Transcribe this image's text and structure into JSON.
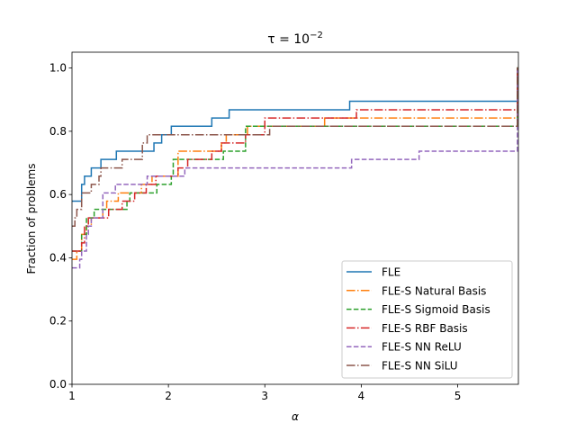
{
  "chart_data": {
    "type": "line",
    "subtype": "step",
    "title_base": "τ = 10",
    "title_exponent": "−2",
    "xlabel": "α",
    "ylabel": "Fraction of problems",
    "xlim": [
      1,
      5.63
    ],
    "ylim": [
      0,
      1.05
    ],
    "x_ticks": [
      1,
      2,
      3,
      4,
      5
    ],
    "y_ticks": [
      0.0,
      0.2,
      0.4,
      0.6,
      0.8,
      1.0
    ],
    "x_tick_labels": [
      "1",
      "2",
      "3",
      "4",
      "5"
    ],
    "y_tick_labels": [
      "0.0",
      "0.2",
      "0.4",
      "0.6",
      "0.8",
      "1.0"
    ],
    "legend_position": "lower-right",
    "series": [
      {
        "name": "FLE",
        "color": "#1f77b4",
        "dash": "solid",
        "points": [
          [
            1.0,
            0.579
          ],
          [
            1.1,
            0.632
          ],
          [
            1.13,
            0.658
          ],
          [
            1.2,
            0.684
          ],
          [
            1.3,
            0.711
          ],
          [
            1.46,
            0.737
          ],
          [
            1.85,
            0.763
          ],
          [
            1.93,
            0.789
          ],
          [
            2.03,
            0.816
          ],
          [
            2.45,
            0.842
          ],
          [
            2.63,
            0.868
          ],
          [
            3.88,
            0.895
          ],
          [
            5.62,
            1.0
          ]
        ]
      },
      {
        "name": "FLE-S Natural Basis",
        "color": "#ff7f0e",
        "dash": "dashdot",
        "points": [
          [
            1.0,
            0.395
          ],
          [
            1.05,
            0.421
          ],
          [
            1.1,
            0.474
          ],
          [
            1.15,
            0.5
          ],
          [
            1.2,
            0.526
          ],
          [
            1.32,
            0.553
          ],
          [
            1.36,
            0.579
          ],
          [
            1.48,
            0.605
          ],
          [
            1.72,
            0.632
          ],
          [
            1.83,
            0.658
          ],
          [
            2.1,
            0.737
          ],
          [
            2.55,
            0.763
          ],
          [
            2.6,
            0.789
          ],
          [
            2.82,
            0.816
          ],
          [
            3.62,
            0.842
          ],
          [
            4.35,
            0.842
          ],
          [
            5.62,
            1.0
          ]
        ]
      },
      {
        "name": "FLE-S Sigmoid Basis",
        "color": "#2ca02c",
        "dash": "dashed",
        "points": [
          [
            1.0,
            0.421
          ],
          [
            1.1,
            0.474
          ],
          [
            1.15,
            0.526
          ],
          [
            1.23,
            0.553
          ],
          [
            1.57,
            0.579
          ],
          [
            1.6,
            0.605
          ],
          [
            1.88,
            0.632
          ],
          [
            2.03,
            0.658
          ],
          [
            2.05,
            0.711
          ],
          [
            2.57,
            0.737
          ],
          [
            2.8,
            0.816
          ],
          [
            5.62,
            1.0
          ]
        ]
      },
      {
        "name": "FLE-S RBF Basis",
        "color": "#d62728",
        "dash": "dashdot",
        "points": [
          [
            1.0,
            0.421
          ],
          [
            1.1,
            0.447
          ],
          [
            1.13,
            0.5
          ],
          [
            1.17,
            0.526
          ],
          [
            1.3,
            0.526
          ],
          [
            1.38,
            0.553
          ],
          [
            1.52,
            0.579
          ],
          [
            1.65,
            0.605
          ],
          [
            1.77,
            0.632
          ],
          [
            1.87,
            0.658
          ],
          [
            2.1,
            0.684
          ],
          [
            2.2,
            0.711
          ],
          [
            2.45,
            0.737
          ],
          [
            2.55,
            0.763
          ],
          [
            2.8,
            0.789
          ],
          [
            3.0,
            0.842
          ],
          [
            3.95,
            0.868
          ],
          [
            5.62,
            1.0
          ]
        ]
      },
      {
        "name": "FLE-S NN ReLU",
        "color": "#9467bd",
        "dash": "dashed",
        "points": [
          [
            1.0,
            0.368
          ],
          [
            1.08,
            0.395
          ],
          [
            1.1,
            0.421
          ],
          [
            1.15,
            0.474
          ],
          [
            1.17,
            0.5
          ],
          [
            1.2,
            0.526
          ],
          [
            1.32,
            0.605
          ],
          [
            1.45,
            0.632
          ],
          [
            1.78,
            0.658
          ],
          [
            2.17,
            0.684
          ],
          [
            3.9,
            0.711
          ],
          [
            4.6,
            0.737
          ],
          [
            5.62,
            1.0
          ]
        ]
      },
      {
        "name": "FLE-S NN SiLU",
        "color": "#8c564b",
        "dash": "dashdot",
        "points": [
          [
            1.0,
            0.5
          ],
          [
            1.03,
            0.526
          ],
          [
            1.05,
            0.553
          ],
          [
            1.1,
            0.605
          ],
          [
            1.2,
            0.632
          ],
          [
            1.28,
            0.658
          ],
          [
            1.3,
            0.684
          ],
          [
            1.52,
            0.711
          ],
          [
            1.73,
            0.763
          ],
          [
            1.78,
            0.789
          ],
          [
            3.05,
            0.816
          ],
          [
            5.62,
            1.0
          ]
        ]
      }
    ]
  }
}
